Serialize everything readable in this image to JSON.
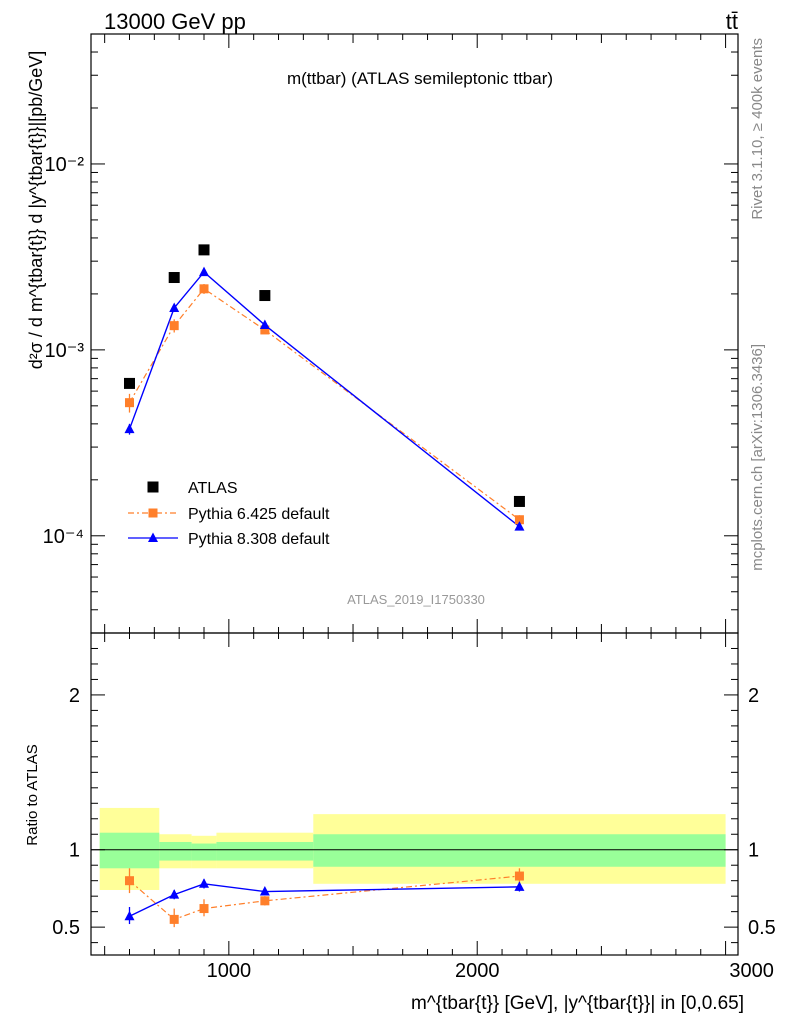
{
  "header": {
    "left": "13000 GeV pp",
    "right": "tt̄"
  },
  "side_texts": {
    "rivet": "Rivet 3.1.10, ≥ 400k events",
    "mcplots": "mcplots.cern.ch [arXiv:1306.3436]"
  },
  "chart_data": [
    {
      "type": "scatter",
      "panel": "main",
      "title": "m(ttbar) (ATLAS semileptonic ttbar)",
      "watermark": "ATLAS_2019_I1750330",
      "ylabel": "d²σ / d m^{tbar{t}} d |y^{tbar{t}}|[pb/GeV]",
      "yscale": "log",
      "ylim": [
        3e-05,
        0.05
      ],
      "xlim": [
        445,
        3050
      ],
      "y_tick_labels": [
        "10⁻⁴",
        "10⁻³",
        "10⁻²"
      ],
      "legend_position": "lower-left",
      "series": [
        {
          "name": "ATLAS",
          "color": "#000000",
          "marker": "square",
          "line": "none",
          "x": [
            600,
            780,
            900,
            1145,
            2170
          ],
          "y": [
            0.00066,
            0.00245,
            0.00345,
            0.00196,
            0.000153
          ],
          "bins": [
            [
              480,
              720
            ],
            [
              720,
              850
            ],
            [
              850,
              950
            ],
            [
              950,
              1340
            ],
            [
              1340,
              3000
            ]
          ]
        },
        {
          "name": "Pythia 6.425 default",
          "color": "#ff7f2a",
          "marker": "square",
          "line": "dash-dot",
          "x": [
            600,
            780,
            900,
            1145,
            2170
          ],
          "y": [
            0.00052,
            0.00135,
            0.00213,
            0.00128,
            0.000122
          ],
          "yerr_low": [
            0.00046,
            0.00124,
            0.002,
            0.00123,
            0.000115
          ],
          "yerr_high": [
            0.00058,
            0.00146,
            0.00226,
            0.00133,
            0.000129
          ]
        },
        {
          "name": "Pythia 8.308 default",
          "color": "#0000ff",
          "marker": "triangle",
          "line": "solid",
          "x": [
            600,
            780,
            900,
            1145,
            2170
          ],
          "y": [
            0.000375,
            0.00168,
            0.00262,
            0.00136,
            0.000112
          ],
          "yerr_low": [
            0.00035,
            0.00163,
            0.00256,
            0.00133,
            0.000108
          ],
          "yerr_high": [
            0.0004,
            0.00173,
            0.00268,
            0.00139,
            0.000116
          ]
        }
      ]
    },
    {
      "type": "scatter",
      "panel": "ratio",
      "ylabel": "Ratio to ATLAS",
      "xlabel": "m^{tbar{t}} [GeV], |y^{tbar{t}}| in [0,0.65]",
      "ylim": [
        0.32,
        2.4
      ],
      "xlim": [
        445,
        3050
      ],
      "x_ticks": [
        1000,
        2000,
        3000
      ],
      "x_tick_labels": [
        "1000",
        "2000",
        "3000"
      ],
      "y_ticks": [
        0.5,
        1,
        2
      ],
      "y_tick_labels": [
        "0.5",
        "1",
        "2"
      ],
      "bands": [
        {
          "x0": 480,
          "x1": 720,
          "inner": [
            0.88,
            1.11
          ],
          "outer": [
            0.74,
            1.27
          ]
        },
        {
          "x0": 720,
          "x1": 850,
          "inner": [
            0.93,
            1.05
          ],
          "outer": [
            0.88,
            1.1
          ]
        },
        {
          "x0": 850,
          "x1": 950,
          "inner": [
            0.93,
            1.04
          ],
          "outer": [
            0.88,
            1.09
          ]
        },
        {
          "x0": 950,
          "x1": 1340,
          "inner": [
            0.93,
            1.05
          ],
          "outer": [
            0.88,
            1.11
          ]
        },
        {
          "x0": 1340,
          "x1": 3000,
          "inner": [
            0.89,
            1.1
          ],
          "outer": [
            0.78,
            1.23
          ]
        }
      ],
      "band_colors": {
        "inner": "#99ff99",
        "outer": "#ffff99"
      },
      "series": [
        {
          "name": "Pythia 6.425 default",
          "color": "#ff7f2a",
          "marker": "square",
          "line": "dash-dot",
          "x": [
            600,
            780,
            900,
            1145,
            2170
          ],
          "y": [
            0.8,
            0.55,
            0.62,
            0.67,
            0.83
          ],
          "yerr_low": [
            0.72,
            0.5,
            0.57,
            0.64,
            0.79
          ],
          "yerr_high": [
            0.88,
            0.62,
            0.68,
            0.7,
            0.88
          ]
        },
        {
          "name": "Pythia 8.308 default",
          "color": "#0000ff",
          "marker": "triangle",
          "line": "solid",
          "x": [
            600,
            780,
            900,
            1145,
            2170
          ],
          "y": [
            0.57,
            0.71,
            0.78,
            0.73,
            0.76
          ],
          "yerr_low": [
            0.52,
            0.68,
            0.75,
            0.71,
            0.73
          ],
          "yerr_high": [
            0.63,
            0.74,
            0.81,
            0.75,
            0.79
          ]
        }
      ]
    }
  ]
}
